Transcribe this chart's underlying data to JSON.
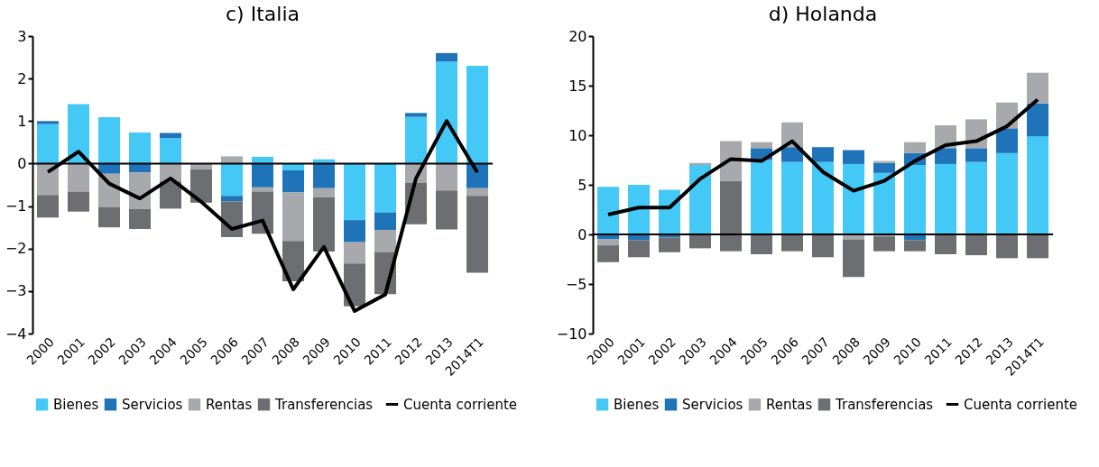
{
  "chart_data": [
    {
      "type": "bar",
      "stacked": true,
      "title": "c) Italia",
      "categories": [
        "2000",
        "2001",
        "2002",
        "2003",
        "2004",
        "2005",
        "2006",
        "2007",
        "2008",
        "2009",
        "2010",
        "2011",
        "2012",
        "2013",
        "2014T1"
      ],
      "ylim": [
        -4,
        3
      ],
      "yticks": [
        -4,
        -3,
        -2,
        -1,
        0,
        1,
        2,
        3
      ],
      "ref_lines": [
        {
          "axis": "y",
          "value": 0,
          "color": "#000000"
        }
      ],
      "grid": false,
      "legend": "bottom",
      "series": [
        {
          "name": "Bienes",
          "color": "#44c8f5",
          "values": [
            0.93,
            1.4,
            1.09,
            0.73,
            0.6,
            null,
            -0.76,
            0.16,
            -0.16,
            0.1,
            -1.33,
            -1.15,
            1.1,
            2.4,
            2.3
          ]
        },
        {
          "name": "Servicios",
          "color": "#1f73b9",
          "values": [
            0.07,
            null,
            -0.24,
            -0.21,
            0.12,
            null,
            -0.13,
            -0.56,
            -0.52,
            -0.58,
            -0.52,
            -0.41,
            0.09,
            0.2,
            -0.58
          ]
        },
        {
          "name": "Rentas",
          "color": "#a7a9ac",
          "values": [
            -0.74,
            -0.66,
            -0.78,
            -0.86,
            -0.42,
            -0.14,
            0.17,
            -0.1,
            -1.14,
            -0.21,
            -0.5,
            -0.52,
            -0.46,
            -0.63,
            -0.18
          ]
        },
        {
          "name": "Transferencias",
          "color": "#6d6e71",
          "values": [
            -0.53,
            -0.47,
            -0.48,
            -0.47,
            -0.64,
            -0.78,
            -0.84,
            -0.99,
            -0.95,
            -1.28,
            -1.01,
            -0.99,
            -0.97,
            -0.92,
            -1.81
          ]
        },
        {
          "name": "Cuenta corriente",
          "type": "line",
          "color": "#000000",
          "values": [
            -0.2,
            0.28,
            -0.47,
            -0.82,
            -0.35,
            -0.9,
            -1.54,
            -1.34,
            -2.96,
            -1.96,
            -3.47,
            -3.08,
            -0.35,
            1.0,
            -0.21
          ]
        }
      ]
    },
    {
      "type": "bar",
      "stacked": true,
      "title": "d) Holanda",
      "categories": [
        "2000",
        "2001",
        "2002",
        "2003",
        "2004",
        "2005",
        "2006",
        "2007",
        "2008",
        "2009",
        "2010",
        "2011",
        "2012",
        "2013",
        "2014T1"
      ],
      "ylim": [
        -10,
        20
      ],
      "yticks": [
        -10,
        -5,
        0,
        5,
        10,
        15,
        20
      ],
      "ref_lines": [
        {
          "axis": "y",
          "value": 0,
          "color": "#000000"
        }
      ],
      "grid": false,
      "legend": "bottom",
      "series": [
        {
          "color": "#6d6e71",
          "values": [
            null,
            null,
            null,
            null,
            5.4,
            null,
            null,
            null,
            null,
            null,
            null,
            null,
            null,
            null,
            null
          ]
        },
        {
          "name": "Bienes",
          "color": "#44c8f5",
          "values": [
            4.8,
            5.0,
            4.5,
            7.0,
            null,
            7.5,
            7.3,
            7.3,
            7.1,
            6.2,
            7.0,
            7.1,
            7.3,
            8.2,
            9.9
          ]
        },
        {
          "name": "Servicios",
          "color": "#1f73b9",
          "values": [
            -0.5,
            -0.6,
            -0.3,
            null,
            null,
            1.2,
            1.5,
            1.5,
            1.4,
            1.0,
            1.2,
            1.6,
            1.4,
            2.5,
            3.3
          ]
        },
        {
          "color": "#1f73b9",
          "values": [
            null,
            null,
            null,
            null,
            null,
            null,
            null,
            null,
            null,
            null,
            -0.6,
            null,
            null,
            null,
            null
          ]
        },
        {
          "name": "Rentas",
          "color": "#a7a9ac",
          "values": [
            -0.6,
            null,
            null,
            0.2,
            4.0,
            0.6,
            2.5,
            null,
            -0.5,
            0.2,
            1.1,
            2.3,
            2.9,
            2.6,
            3.1
          ]
        },
        {
          "color": "#a7a9ac",
          "values": [
            null,
            null,
            null,
            null,
            null,
            null,
            null,
            null,
            null,
            -0.2,
            null,
            null,
            null,
            null,
            null
          ]
        },
        {
          "name": "Transferencias",
          "color": "#6d6e71",
          "values": [
            -1.7,
            -1.7,
            -1.5,
            -1.4,
            -1.7,
            -2.0,
            -1.7,
            -2.3,
            -3.8,
            -1.5,
            -1.1,
            -2.0,
            -2.1,
            -2.4,
            -2.4
          ]
        },
        {
          "name": "Cuenta corriente",
          "type": "line",
          "color": "#000000",
          "values": [
            2.0,
            2.7,
            2.7,
            5.6,
            7.6,
            7.4,
            9.4,
            6.3,
            4.4,
            5.4,
            7.4,
            9.0,
            9.4,
            10.9,
            13.6
          ]
        }
      ]
    }
  ]
}
